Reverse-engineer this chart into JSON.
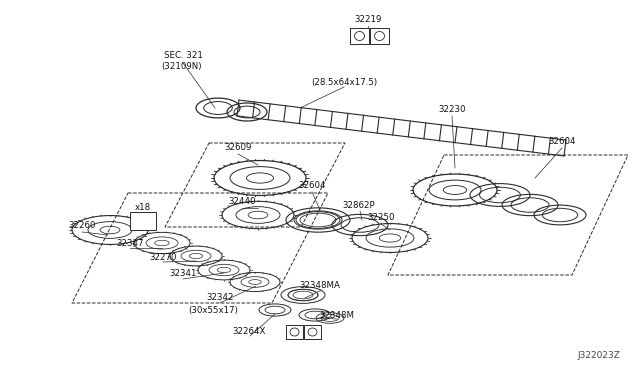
{
  "background_color": "#ffffff",
  "line_color": "#2a2a2a",
  "text_color": "#111111",
  "fig_width": 6.4,
  "fig_height": 3.72,
  "dpi": 100,
  "watermark": "J322023Z",
  "labels": [
    [
      "32219",
      365,
      18
    ],
    [
      "SEC. 321",
      182,
      55
    ],
    [
      "(32109N)",
      181,
      67
    ],
    [
      "(28.5x64x17.5)",
      340,
      82
    ],
    [
      "32230",
      450,
      112
    ],
    [
      "32604",
      555,
      145
    ],
    [
      "32604",
      310,
      188
    ],
    [
      "32862P",
      358,
      208
    ],
    [
      "32250",
      380,
      222
    ],
    [
      "32609",
      237,
      152
    ],
    [
      "32440",
      240,
      205
    ],
    [
      "x18",
      138,
      202
    ],
    [
      "32260",
      82,
      228
    ],
    [
      "32347",
      130,
      243
    ],
    [
      "32270",
      164,
      258
    ],
    [
      "32341",
      182,
      277
    ],
    [
      "32342",
      220,
      298
    ],
    [
      "(30x55x17)",
      212,
      311
    ],
    [
      "32348MA",
      320,
      288
    ],
    [
      "32348M",
      335,
      318
    ],
    [
      "32264X",
      248,
      334
    ]
  ]
}
